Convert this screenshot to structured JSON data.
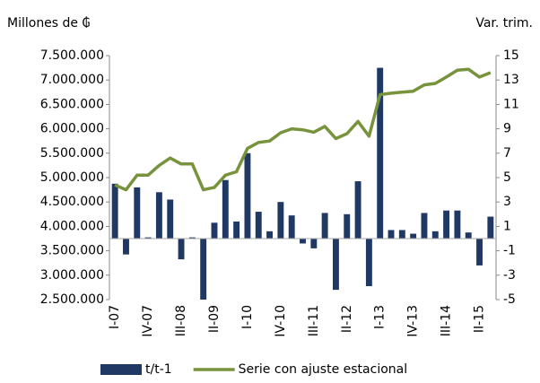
{
  "chart_data": {
    "type": "bar",
    "ylabel": "Millones de ₲",
    "y2label": "Var. trim.",
    "categories": [
      "I-07",
      null,
      null,
      "IV-07",
      null,
      null,
      "III-08",
      null,
      null,
      "II-09",
      null,
      null,
      "I-10",
      null,
      null,
      "IV-10",
      null,
      null,
      "III-11",
      null,
      null,
      "II-12",
      null,
      null,
      "I-13",
      null,
      null,
      "IV-13",
      null,
      null,
      "III-14",
      null,
      null,
      "II-15",
      null
    ],
    "series": [
      {
        "name": "t/t-1",
        "type": "bar",
        "axis": "y2",
        "color": "#1f3864",
        "values": [
          4.5,
          -1.3,
          4.2,
          0.1,
          3.8,
          3.2,
          -1.7,
          0.1,
          -5.0,
          1.3,
          4.8,
          1.4,
          7.0,
          2.2,
          0.6,
          3.0,
          1.9,
          -0.4,
          -0.8,
          2.1,
          -4.2,
          2.0,
          4.7,
          -3.9,
          14.0,
          0.7,
          0.7,
          0.4,
          2.1,
          0.6,
          2.3,
          2.3,
          0.5,
          -2.2,
          1.8
        ]
      },
      {
        "name": "Serie con ajuste estacional",
        "type": "line",
        "axis": "y",
        "color": "#77933c",
        "values": [
          4850000,
          4750000,
          5050000,
          5050000,
          5250000,
          5400000,
          5280000,
          5280000,
          4750000,
          4800000,
          5050000,
          5120000,
          5600000,
          5720000,
          5750000,
          5920000,
          6000000,
          5980000,
          5930000,
          6050000,
          5800000,
          5900000,
          6150000,
          5850000,
          6700000,
          6730000,
          6750000,
          6770000,
          6900000,
          6930000,
          7060000,
          7200000,
          7220000,
          7060000,
          7150000
        ]
      }
    ],
    "ylim": [
      2500000,
      7500000
    ],
    "yticks": [
      {
        "value": 2500000,
        "label": "2.500.000"
      },
      {
        "value": 3000000,
        "label": "3.000.000"
      },
      {
        "value": 3500000,
        "label": "3.500.000"
      },
      {
        "value": 4000000,
        "label": "4.000.000"
      },
      {
        "value": 4500000,
        "label": "4.500.000"
      },
      {
        "value": 5000000,
        "label": "5.000.000"
      },
      {
        "value": 5500000,
        "label": "5.500.000"
      },
      {
        "value": 6000000,
        "label": "6.000.000"
      },
      {
        "value": 6500000,
        "label": "6.500.000"
      },
      {
        "value": 7000000,
        "label": "7.000.000"
      },
      {
        "value": 7500000,
        "label": "7.500.000"
      }
    ],
    "y2lim": [
      -5,
      15
    ],
    "y2ticks": [
      -5,
      -3,
      -1,
      1,
      3,
      5,
      7,
      9,
      11,
      13,
      15
    ],
    "legend": "bottom"
  }
}
